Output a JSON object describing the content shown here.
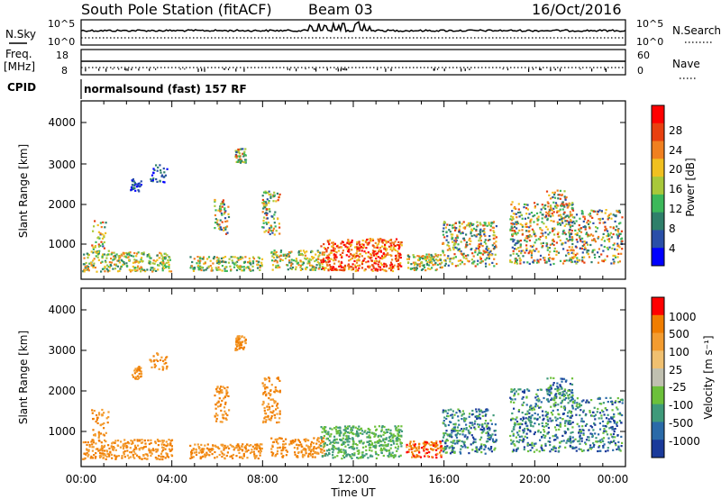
{
  "header": {
    "station": "South Pole Station (fitACF)",
    "beam": "Beam 03",
    "date": "16/Oct/2016"
  },
  "top_panels": {
    "nsky_label": "N.Sky",
    "nsky_ticks": [
      "10^5",
      "10^0"
    ],
    "nsearch_label": "N.Search",
    "nsearch_ticks": [
      "10^5",
      "10^0"
    ],
    "freq_label_line1": "Freq.",
    "freq_label_line2": "[MHz]",
    "freq_ticks": [
      "18",
      "8"
    ],
    "nave_label": "Nave",
    "nave_ticks": [
      "60",
      "0"
    ],
    "cpid_label": "CPID",
    "cpid_text": "normalsound (fast) 157 RF"
  },
  "power_panel": {
    "ylabel": "Slant Range [km]",
    "yticks": [
      "4000",
      "3000",
      "2000",
      "1000"
    ],
    "colorbar_label": "Power [dB]",
    "colorbar_ticks": [
      "28",
      "24",
      "20",
      "16",
      "12",
      "8",
      "4"
    ],
    "colors": [
      "#0000ff",
      "#2a4fa8",
      "#2f7f6a",
      "#3cb85a",
      "#a8c83a",
      "#f0c020",
      "#f08020",
      "#e84010",
      "#ff0000"
    ]
  },
  "velocity_panel": {
    "ylabel": "Slant Range [km]",
    "yticks": [
      "4000",
      "3000",
      "2000",
      "1000"
    ],
    "colorbar_label": "Velocity [m s⁻¹]",
    "colorbar_ticks": [
      "1000",
      "500",
      "100",
      "25",
      "-25",
      "-100",
      "-500",
      "-1000"
    ],
    "colors": [
      "#1a3a9a",
      "#2a6aa8",
      "#3f9a7a",
      "#6cc03a",
      "#c0c0b0",
      "#f0c070",
      "#f39c30",
      "#f07d00",
      "#ff0000"
    ]
  },
  "xaxis": {
    "ticks": [
      "00:00",
      "04:00",
      "08:00",
      "12:00",
      "16:00",
      "20:00",
      "00:00"
    ],
    "label": "Time UT"
  }
}
